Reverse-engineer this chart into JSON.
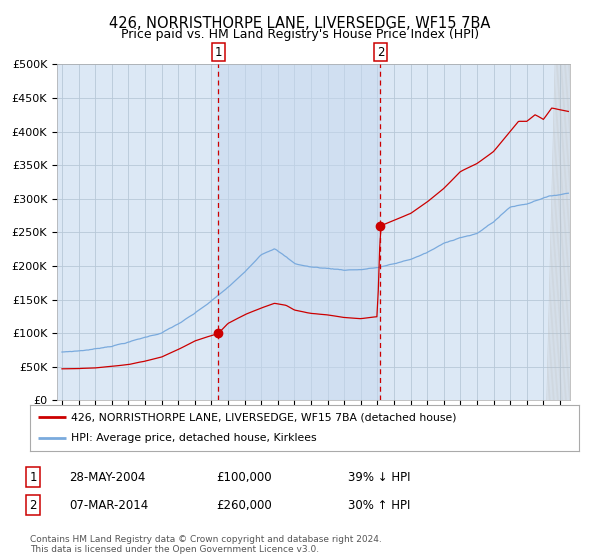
{
  "title": "426, NORRISTHORPE LANE, LIVERSEDGE, WF15 7BA",
  "subtitle": "Price paid vs. HM Land Registry's House Price Index (HPI)",
  "title_fontsize": 10.5,
  "subtitle_fontsize": 9,
  "bg_color": "#ffffff",
  "plot_bg_color": "#dce8f5",
  "grid_color": "#b8c8d8",
  "hpi_line_color": "#7aaadd",
  "price_line_color": "#cc0000",
  "sale1_date_num": 2004.41,
  "sale1_price": 100000,
  "sale2_date_num": 2014.18,
  "sale2_price": 260000,
  "legend_label_red": "426, NORRISTHORPE LANE, LIVERSEDGE, WF15 7BA (detached house)",
  "legend_label_blue": "HPI: Average price, detached house, Kirklees",
  "annotation1_date": "28-MAY-2004",
  "annotation1_price": "£100,000",
  "annotation1_hpi": "39% ↓ HPI",
  "annotation2_date": "07-MAR-2014",
  "annotation2_price": "£260,000",
  "annotation2_hpi": "30% ↑ HPI",
  "footnote": "Contains HM Land Registry data © Crown copyright and database right 2024.\nThis data is licensed under the Open Government Licence v3.0.",
  "ylim": [
    0,
    500000
  ],
  "xlim_start": 1994.7,
  "xlim_end": 2025.6
}
